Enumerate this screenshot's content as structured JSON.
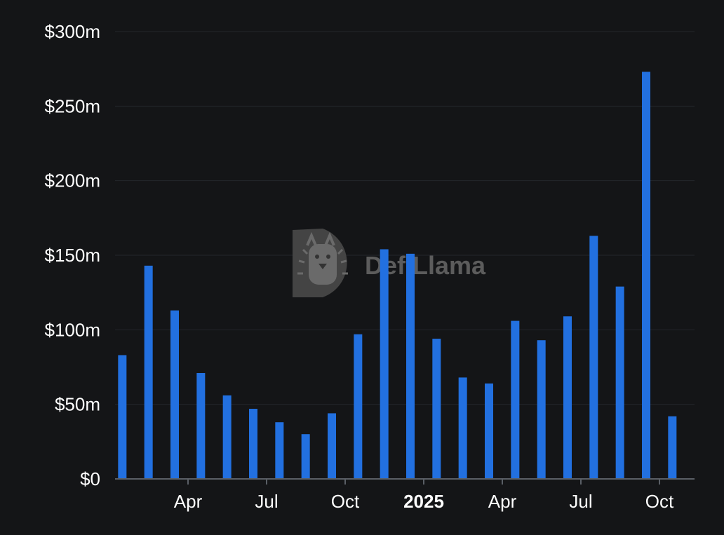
{
  "watermark": {
    "text": "DefiLlama",
    "icon": "llama-logo-icon"
  },
  "colors": {
    "background": "#141517",
    "bar": "#2270e0",
    "grid": "#23262b",
    "axis": "#5a5f66",
    "text": "#ffffff"
  },
  "chart_data": {
    "type": "bar",
    "title": "",
    "xlabel": "",
    "ylabel": "",
    "ylim": [
      0,
      300
    ],
    "y_unit": "m",
    "y_ticks": [
      0,
      50,
      100,
      150,
      200,
      250,
      300
    ],
    "y_tick_labels": [
      "$0",
      "$50m",
      "$100m",
      "$150m",
      "$200m",
      "$250m",
      "$300m"
    ],
    "grid": true,
    "categories": [
      "2024-02",
      "2024-03",
      "2024-04",
      "2024-05",
      "2024-06",
      "2024-07",
      "2024-08",
      "2024-09",
      "2024-10",
      "2024-11",
      "2024-12",
      "2025-01",
      "2025-02",
      "2025-03",
      "2025-04",
      "2025-05",
      "2025-06",
      "2025-07",
      "2025-08",
      "2025-09",
      "2025-10",
      "2025-11"
    ],
    "values": [
      83,
      143,
      113,
      71,
      56,
      47,
      38,
      30,
      44,
      97,
      154,
      151,
      94,
      68,
      64,
      106,
      93,
      109,
      163,
      129,
      273,
      42
    ],
    "x_tick_labels": [
      {
        "at": "2024-04",
        "label": "Apr",
        "bold": false
      },
      {
        "at": "2024-07",
        "label": "Jul",
        "bold": false
      },
      {
        "at": "2024-10",
        "label": "Oct",
        "bold": false
      },
      {
        "at": "2025-01",
        "label": "2025",
        "bold": true
      },
      {
        "at": "2025-04",
        "label": "Apr",
        "bold": false
      },
      {
        "at": "2025-07",
        "label": "Jul",
        "bold": false
      },
      {
        "at": "2025-10",
        "label": "Oct",
        "bold": false
      }
    ]
  }
}
